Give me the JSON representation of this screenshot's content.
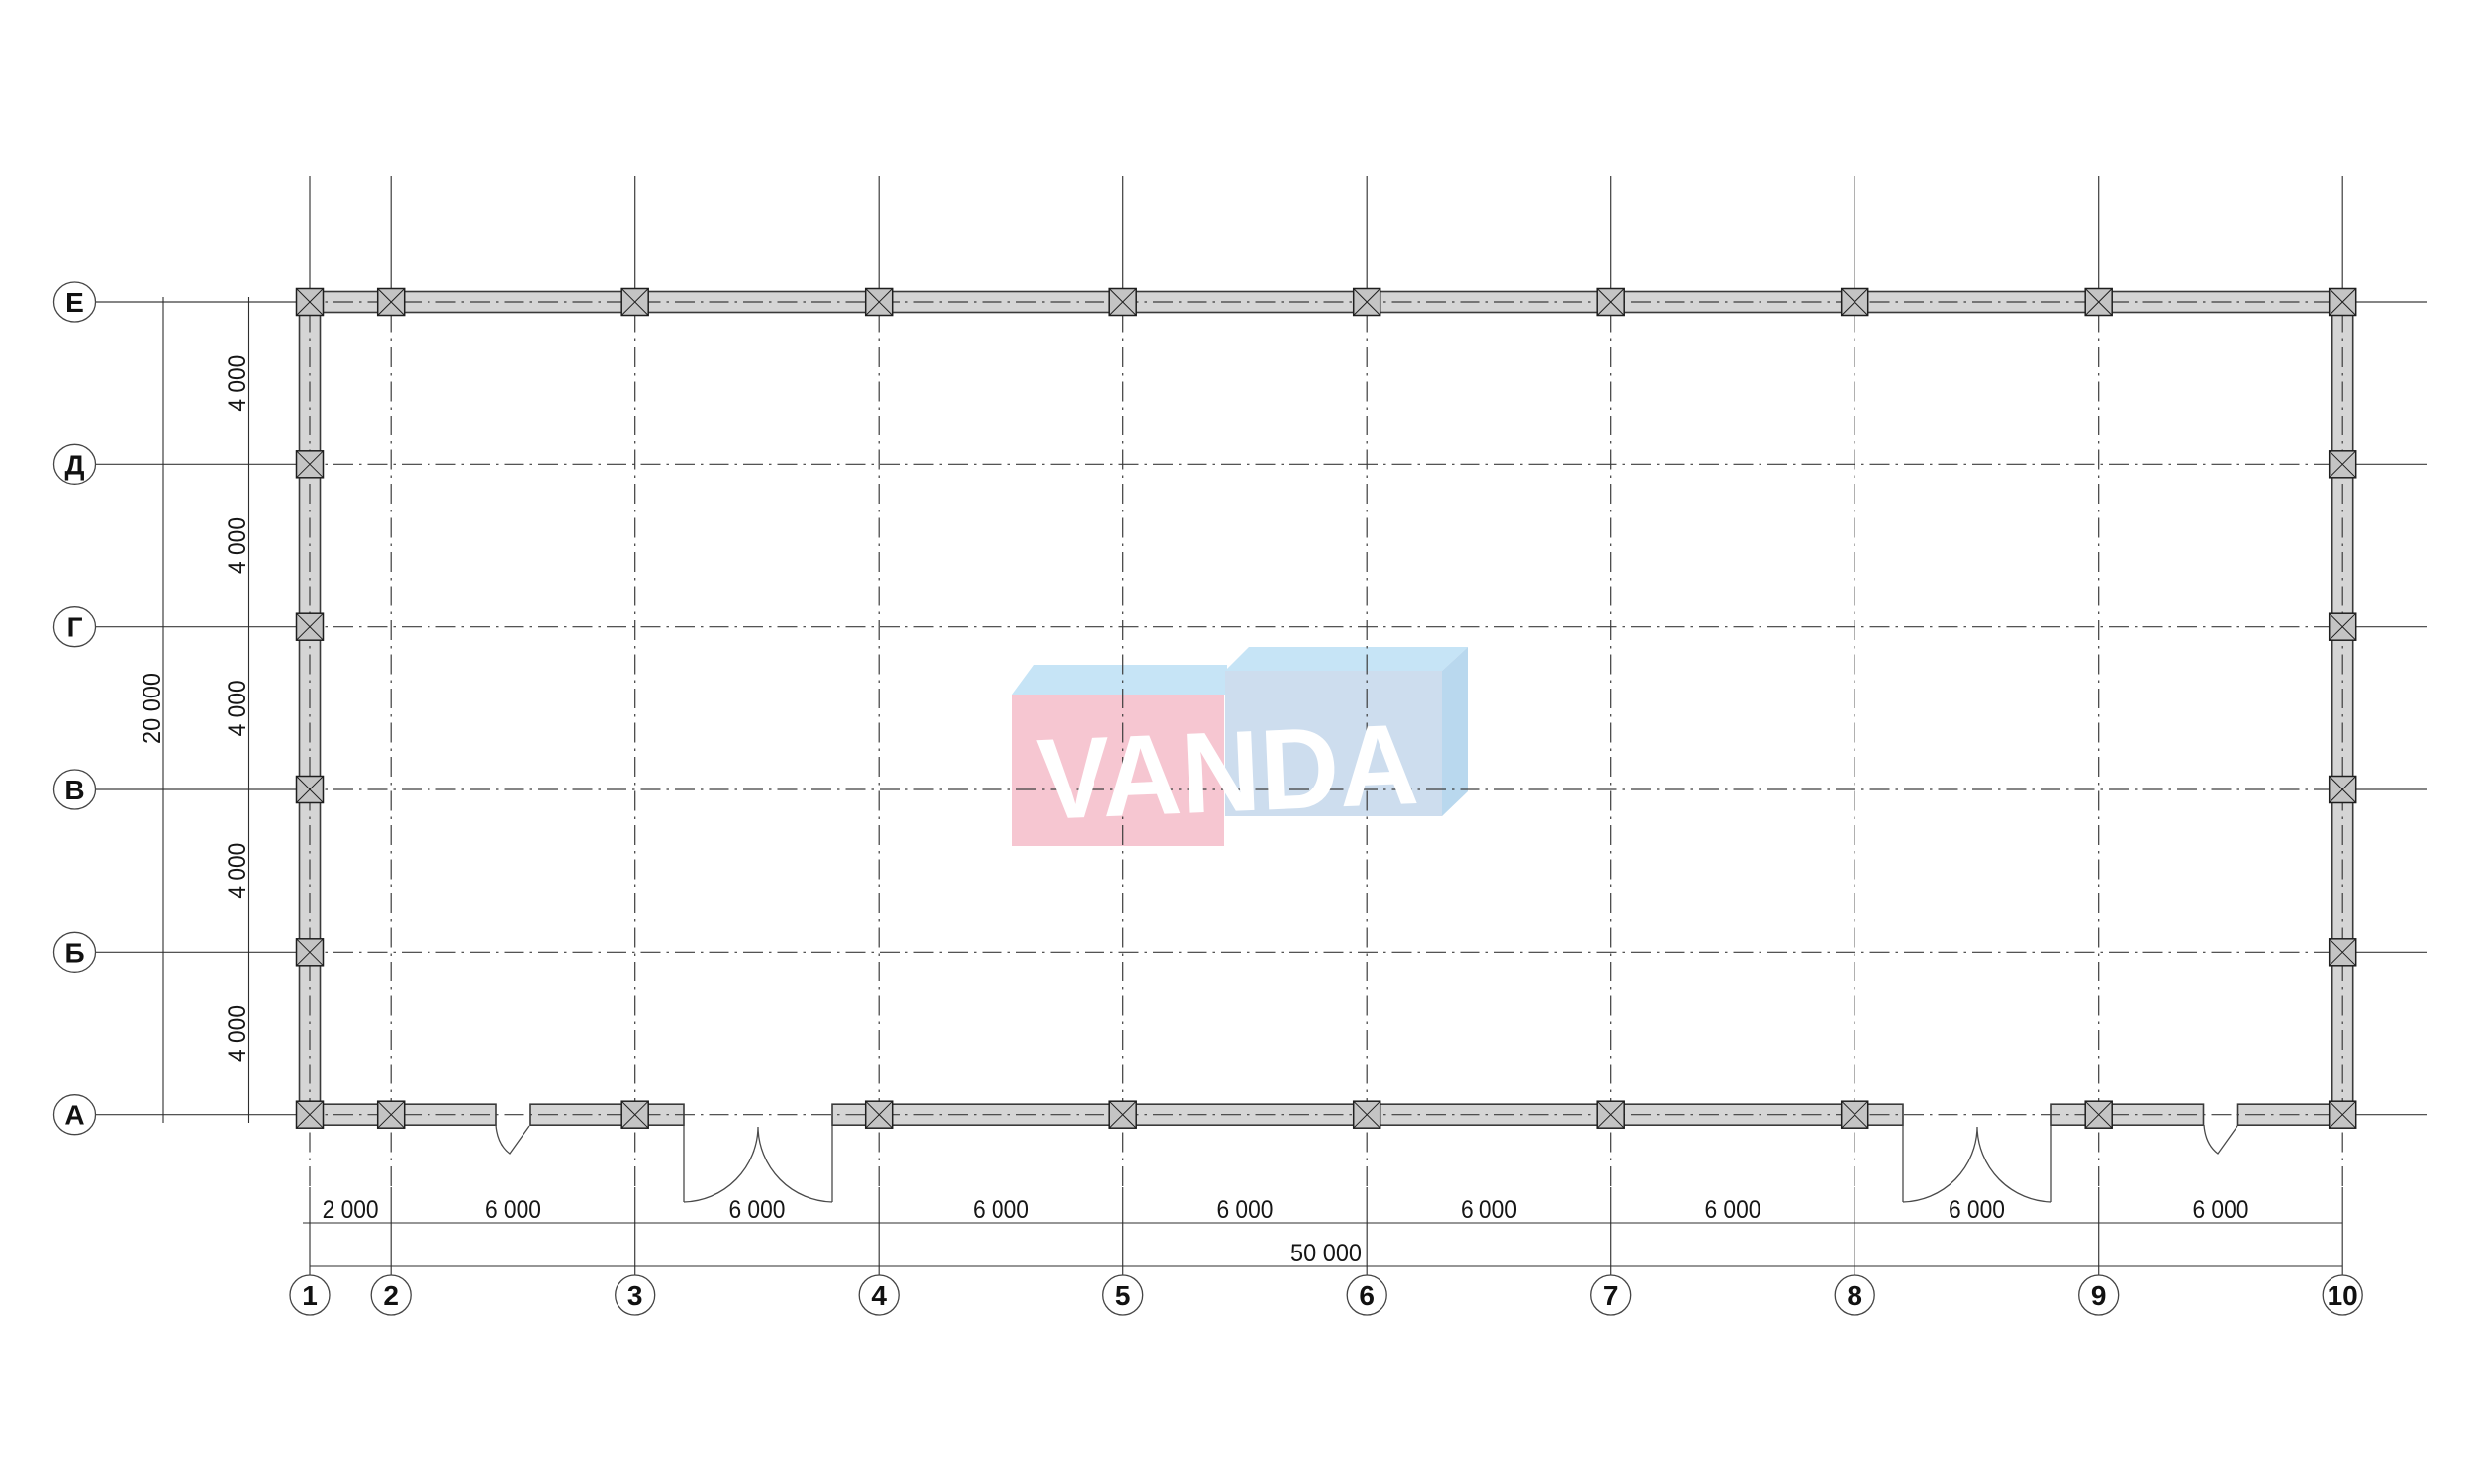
{
  "axes": {
    "row_labels": [
      "Е",
      "Д",
      "Г",
      "В",
      "Б",
      "А"
    ],
    "col_labels": [
      "1",
      "2",
      "3",
      "4",
      "5",
      "6",
      "7",
      "8",
      "9",
      "10"
    ]
  },
  "dimensions": {
    "bays": [
      "2 000",
      "6 000",
      "6 000",
      "6 000",
      "6 000",
      "6 000",
      "6 000",
      "6 000",
      "6 000"
    ],
    "total_width": "50 000",
    "rows": [
      "4 000",
      "4 000",
      "4 000",
      "4 000",
      "4 000"
    ],
    "total_height": "20 000"
  },
  "watermark": {
    "text": "VANDA",
    "pink": "#f6c6d1",
    "top_blue": "#c6e4f6",
    "front_blue": "#cdddee",
    "side_blue": "#b9d8ee",
    "letter_color": "#ffffff"
  },
  "style": {
    "line_color": "#3c3c3c",
    "dim_color": "#2e2e2e",
    "text_color": "#151515",
    "wall_fill": "#d5d5d5",
    "wall_edge": "#3a3a3a",
    "column_fill": "#c4c4c4",
    "column_edge": "#1f1f1f",
    "circle_edge": "#454545"
  }
}
